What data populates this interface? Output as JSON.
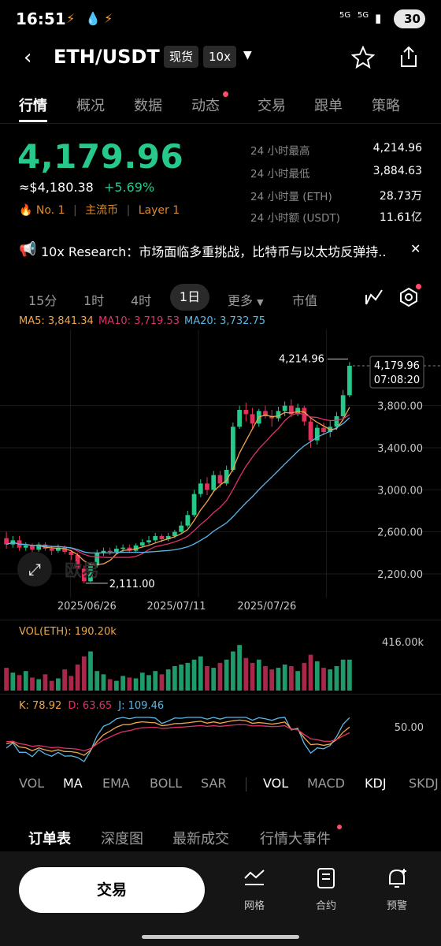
{
  "status_bar": {
    "time": "16:51",
    "signal1": "5G",
    "signal2": "5G",
    "battery": "30"
  },
  "header": {
    "title": "ETH/USDT",
    "chip_spot": "现货",
    "chip_leverage": "10x"
  },
  "tabs": [
    "行情",
    "概况",
    "数据",
    "动态",
    "交易",
    "跟单",
    "策略"
  ],
  "price": {
    "last": "4,179.96",
    "approx_usd": "≈$4,180.38",
    "change": "+5.69%",
    "rank": "No. 1",
    "tag_mainstream": "主流币",
    "tag_layer": "Layer 1"
  },
  "stats": [
    {
      "label": "24 小时最高",
      "value": "4,214.96"
    },
    {
      "label": "24 小时最低",
      "value": "3,884.63"
    },
    {
      "label": "24 小时量 (ETH)",
      "value": "28.73万"
    },
    {
      "label": "24 小时额 (USDT)",
      "value": "11.61亿"
    }
  ],
  "news": {
    "text": "10x Research：市场面临多重挑战，比特币与以太坊反弹持.."
  },
  "intervals": [
    "15分",
    "1时",
    "4时",
    "1日",
    "更多",
    "市值"
  ],
  "ma_legend": {
    "ma5": "MA5: 3,841.34",
    "ma10": "MA10: 3,719.53",
    "ma20": "MA20: 3,732.75"
  },
  "chart_labels": {
    "high_marker": "4,214.96",
    "low_marker": "2,111.00",
    "current_price": "4,179.96",
    "countdown": "07:08:20",
    "y_ticks": [
      "3,800.00",
      "3,400.00",
      "3,000.00",
      "2,600.00",
      "2,200.00"
    ],
    "x_ticks": [
      "2025/06/26",
      "2025/07/11",
      "2025/07/26"
    ],
    "watermark": "欧易"
  },
  "volume": {
    "label": "VOL(ETH): 190.20k",
    "tick": "416.00k"
  },
  "kdj": {
    "k": "K: 78.92",
    "d": "D: 63.65",
    "j": "J: 109.46",
    "tick": "50.00"
  },
  "indicators": [
    "VOL",
    "MA",
    "EMA",
    "BOLL",
    "SAR",
    "VOL",
    "MACD",
    "KDJ",
    "SKDJ"
  ],
  "bottom_tabs": [
    "订单表",
    "深度图",
    "最新成交",
    "行情大事件"
  ],
  "bottom_bar": {
    "trade": "交易",
    "grid": "网格",
    "contract": "合约",
    "alert": "预警"
  },
  "colors": {
    "up": "#26c98a",
    "down": "#e0315b",
    "ma5": "#f0a64a",
    "ma10": "#e0316b",
    "ma20": "#5ab8e8",
    "accent_dot": "#ff4d6a"
  },
  "chart_data": {
    "type": "candlestick",
    "series": [
      {
        "name": "ETH/USDT 1日",
        "values": [
          [
            2540,
            2480,
            2600,
            2440
          ],
          [
            2480,
            2520,
            2560,
            2450
          ],
          [
            2520,
            2450,
            2560,
            2420
          ],
          [
            2450,
            2470,
            2500,
            2420
          ],
          [
            2470,
            2430,
            2490,
            2400
          ],
          [
            2430,
            2480,
            2500,
            2410
          ],
          [
            2480,
            2440,
            2500,
            2420
          ],
          [
            2440,
            2420,
            2470,
            2380
          ],
          [
            2420,
            2450,
            2480,
            2400
          ],
          [
            2450,
            2410,
            2470,
            2390
          ],
          [
            2410,
            2380,
            2430,
            2330
          ],
          [
            2380,
            2250,
            2400,
            2200
          ],
          [
            2250,
            2130,
            2280,
            2111
          ],
          [
            2130,
            2280,
            2300,
            2120
          ],
          [
            2280,
            2400,
            2430,
            2260
          ],
          [
            2400,
            2420,
            2450,
            2370
          ],
          [
            2420,
            2410,
            2450,
            2380
          ],
          [
            2410,
            2440,
            2470,
            2390
          ],
          [
            2440,
            2450,
            2480,
            2410
          ],
          [
            2450,
            2420,
            2480,
            2400
          ],
          [
            2420,
            2470,
            2490,
            2400
          ],
          [
            2470,
            2500,
            2530,
            2450
          ],
          [
            2500,
            2520,
            2560,
            2480
          ],
          [
            2520,
            2560,
            2590,
            2500
          ],
          [
            2560,
            2530,
            2580,
            2500
          ],
          [
            2530,
            2560,
            2590,
            2510
          ],
          [
            2560,
            2600,
            2620,
            2540
          ],
          [
            2600,
            2660,
            2700,
            2580
          ],
          [
            2660,
            2760,
            2800,
            2640
          ],
          [
            2760,
            2960,
            3000,
            2740
          ],
          [
            2960,
            3060,
            3100,
            2930
          ],
          [
            3060,
            3000,
            3120,
            2950
          ],
          [
            3000,
            3140,
            3180,
            2980
          ],
          [
            3140,
            3060,
            3180,
            3020
          ],
          [
            3060,
            3190,
            3230,
            3040
          ],
          [
            3190,
            3600,
            3640,
            3170
          ],
          [
            3600,
            3760,
            3800,
            3580
          ],
          [
            3760,
            3720,
            3830,
            3650
          ],
          [
            3720,
            3630,
            3780,
            3580
          ],
          [
            3630,
            3750,
            3770,
            3600
          ],
          [
            3750,
            3700,
            3800,
            3680
          ],
          [
            3700,
            3680,
            3760,
            3600
          ],
          [
            3680,
            3750,
            3790,
            3650
          ],
          [
            3750,
            3800,
            3840,
            3700
          ],
          [
            3800,
            3720,
            3860,
            3690
          ],
          [
            3720,
            3780,
            3820,
            3700
          ],
          [
            3780,
            3650,
            3800,
            3610
          ],
          [
            3650,
            3470,
            3680,
            3400
          ],
          [
            3470,
            3590,
            3620,
            3430
          ],
          [
            3590,
            3550,
            3640,
            3520
          ],
          [
            3550,
            3600,
            3660,
            3500
          ],
          [
            3600,
            3700,
            3740,
            3570
          ],
          [
            3700,
            3900,
            3950,
            3680
          ],
          [
            3900,
            4180,
            4215,
            3880
          ]
        ]
      }
    ],
    "x_ticks": [
      "2025/06/26",
      "2025/07/11",
      "2025/07/26"
    ],
    "y_ticks": [
      3800,
      3400,
      3000,
      2600,
      2200
    ],
    "ylim": [
      2050,
      4300
    ],
    "ma": {
      "ma5": 3841.34,
      "ma10": 3719.53,
      "ma20": 3732.75
    },
    "volume_k": [
      140,
      110,
      95,
      120,
      80,
      70,
      100,
      60,
      75,
      130,
      90,
      160,
      210,
      240,
      120,
      100,
      70,
      60,
      90,
      80,
      75,
      110,
      95,
      120,
      100,
      130,
      150,
      160,
      170,
      190,
      210,
      150,
      140,
      170,
      190,
      240,
      280,
      200,
      170,
      190,
      150,
      130,
      140,
      160,
      150,
      120,
      170,
      220,
      180,
      140,
      130,
      150,
      190,
      190
    ]
  }
}
